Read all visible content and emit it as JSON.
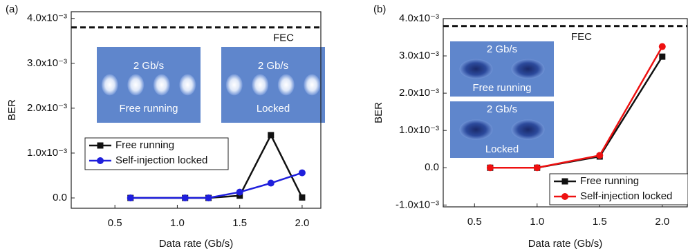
{
  "chart_data": [
    {
      "type": "line",
      "panel_label": "(a)",
      "x_label": "Data rate (Gb/s)",
      "y_label": "BER",
      "x": [
        0.625,
        1.0625,
        1.25,
        1.5,
        1.75,
        2.0
      ],
      "series": [
        {
          "name": "Free running",
          "color": "#111111",
          "marker": "square",
          "values": [
            0,
            0,
            0,
            5e-05,
            0.0014,
            1e-05
          ]
        },
        {
          "name": "Self-injection locked",
          "color": "#1f1fdc",
          "marker": "circle",
          "values": [
            0,
            0,
            0,
            0.00013,
            0.00033,
            0.00056
          ]
        }
      ],
      "xlim": [
        0.15,
        2.15
      ],
      "ylim": [
        -0.00023,
        0.00415
      ],
      "xticks": [
        0.5,
        {
          "value": 1,
          "label": "1.0"
        },
        1.5,
        {
          "value": 2,
          "label": "2.0"
        }
      ],
      "yticks": [
        {
          "value": 0,
          "label": "0.0"
        },
        {
          "value": 0.001,
          "label": "1.0x10⁻³"
        },
        {
          "value": 0.002,
          "label": "2.0x10⁻³"
        },
        {
          "value": 0.003,
          "label": "3.0x10⁻³"
        },
        {
          "value": 0.004,
          "label": "4.0x10⁻³"
        }
      ],
      "threshold": {
        "value": 0.0038,
        "label": "FEC"
      },
      "insets": [
        {
          "top": "2 Gb/s",
          "bottom": "Free running"
        },
        {
          "top": "2 Gb/s",
          "bottom": "Locked"
        }
      ]
    },
    {
      "type": "line",
      "panel_label": "(b)",
      "x_label": "Data rate (Gb/s)",
      "y_label": "BER",
      "x": [
        0.625,
        1.0,
        1.5,
        2.0
      ],
      "series": [
        {
          "name": "Free running",
          "color": "#111111",
          "marker": "square",
          "values": [
            0,
            0,
            0.0003,
            0.00298
          ]
        },
        {
          "name": "Self-injection locked",
          "color": "#ee1111",
          "marker": "circle",
          "values": [
            0,
            0,
            0.00033,
            0.00325
          ]
        }
      ],
      "xlim": [
        0.25,
        2.2
      ],
      "ylim": [
        -0.00105,
        0.004
      ],
      "xticks": [
        0.5,
        {
          "value": 1,
          "label": "1.0"
        },
        1.5,
        {
          "value": 2,
          "label": "2.0"
        }
      ],
      "yticks": [
        {
          "value": -0.001,
          "label": "-1.0x10⁻³"
        },
        {
          "value": 0,
          "label": "0.0"
        },
        {
          "value": 0.001,
          "label": "1.0x10⁻³"
        },
        {
          "value": 0.002,
          "label": "2.0x10⁻³"
        },
        {
          "value": 0.003,
          "label": "3.0x10⁻³"
        },
        {
          "value": 0.004,
          "label": "4.0x10⁻³"
        }
      ],
      "threshold": {
        "value": 0.0038,
        "label": "FEC"
      },
      "insets": [
        {
          "top": "2 Gb/s",
          "bottom": "Free running"
        },
        {
          "top": "2 Gb/s",
          "bottom": "Locked"
        }
      ]
    }
  ]
}
